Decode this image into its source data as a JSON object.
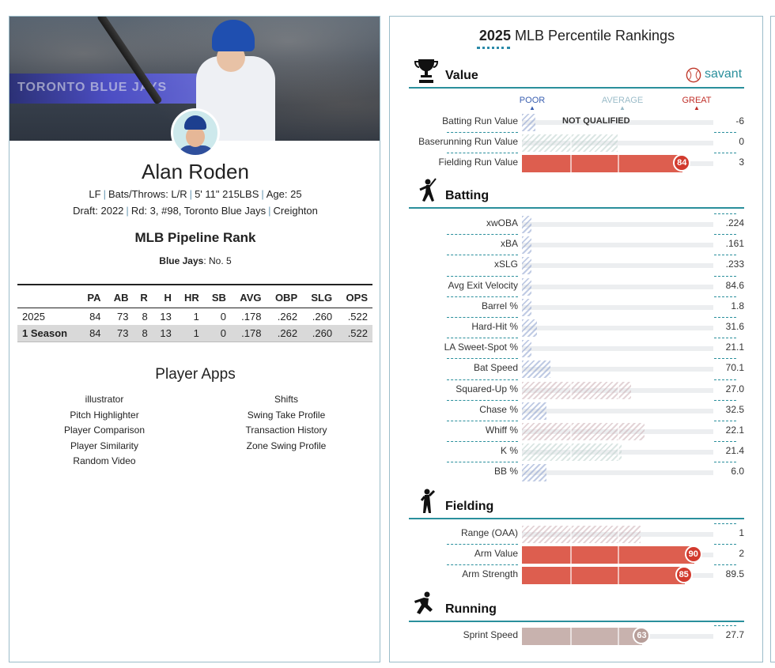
{
  "player": {
    "name": "Alan Roden",
    "position": "LF",
    "bats_throws": "Bats/Throws: L/R",
    "height_weight": "5' 11\" 215LBS",
    "age": "Age: 25",
    "draft": "Draft: 2022",
    "draft_pick": "Rd: 3, #98, Toronto Blue Jays",
    "school": "Creighton"
  },
  "hero_banner_text": "TORONTO BLUE JAYS",
  "pipeline": {
    "title": "MLB Pipeline Rank",
    "team": "Blue Jays",
    "rank": ": No. 5"
  },
  "stats_table": {
    "columns": [
      "",
      "PA",
      "AB",
      "R",
      "H",
      "HR",
      "SB",
      "AVG",
      "OBP",
      "SLG",
      "OPS"
    ],
    "rows": [
      [
        "2025",
        "84",
        "73",
        "8",
        "13",
        "1",
        "0",
        ".178",
        ".262",
        ".260",
        ".522"
      ],
      [
        "1 Season",
        "84",
        "73",
        "8",
        "13",
        "1",
        "0",
        ".178",
        ".262",
        ".260",
        ".522"
      ]
    ]
  },
  "apps": {
    "title": "Player Apps",
    "left": [
      "illustrator",
      "Pitch Highlighter",
      "Player Comparison",
      "Player Similarity",
      "Random Video"
    ],
    "right": [
      "Shifts",
      "Swing Take Profile",
      "Transaction History",
      "Zone Swing Profile"
    ]
  },
  "rankings": {
    "year": "2025",
    "title": "MLB Percentile Rankings",
    "brand": "savant",
    "legend": {
      "poor": "POOR",
      "average": "AVERAGE",
      "great": "GREAT"
    },
    "colors": {
      "great": "#d23a2e",
      "poor": "#3a5fb0",
      "average": "#9bbcc9",
      "accent": "#2a8f9c"
    },
    "not_qualified": "NOT QUALIFIED",
    "sections": [
      {
        "name": "Value",
        "icon": "trophy-icon",
        "rows": [
          {
            "label": "Batting Run Value",
            "pct": 7,
            "value": "-6",
            "nq": true
          },
          {
            "label": "Baserunning Run Value",
            "pct": 50,
            "value": "0"
          },
          {
            "label": "Fielding Run Value",
            "pct": 84,
            "value": "3",
            "show": "84"
          }
        ]
      },
      {
        "name": "Batting",
        "icon": "batter-icon",
        "rows": [
          {
            "label": "xwOBA",
            "pct": 2,
            "value": ".224"
          },
          {
            "label": "xBA",
            "pct": 2,
            "value": ".161"
          },
          {
            "label": "xSLG",
            "pct": 2,
            "value": ".233"
          },
          {
            "label": "Avg Exit Velocity",
            "pct": 2,
            "value": "84.6"
          },
          {
            "label": "Barrel %",
            "pct": 4,
            "value": "1.8"
          },
          {
            "label": "Hard-Hit %",
            "pct": 8,
            "value": "31.6"
          },
          {
            "label": "LA Sweet-Spot %",
            "pct": 2,
            "value": "21.1"
          },
          {
            "label": "Bat Speed",
            "pct": 15,
            "value": "70.1"
          },
          {
            "label": "Squared-Up %",
            "pct": 57,
            "value": "27.0"
          },
          {
            "label": "Chase %",
            "pct": 13,
            "value": "32.5"
          },
          {
            "label": "Whiff %",
            "pct": 64,
            "value": "22.1"
          },
          {
            "label": "K %",
            "pct": 52,
            "value": "21.4"
          },
          {
            "label": "BB %",
            "pct": 13,
            "value": "6.0"
          }
        ]
      },
      {
        "name": "Fielding",
        "icon": "fielder-icon",
        "rows": [
          {
            "label": "Range (OAA)",
            "pct": 62,
            "value": "1"
          },
          {
            "label": "Arm Value",
            "pct": 90,
            "value": "2",
            "show": "90"
          },
          {
            "label": "Arm Strength",
            "pct": 85,
            "value": "89.5",
            "show": "85"
          }
        ]
      },
      {
        "name": "Running",
        "icon": "runner-icon",
        "rows": [
          {
            "label": "Sprint Speed",
            "pct": 63,
            "value": "27.7",
            "show": "63"
          }
        ]
      }
    ]
  }
}
